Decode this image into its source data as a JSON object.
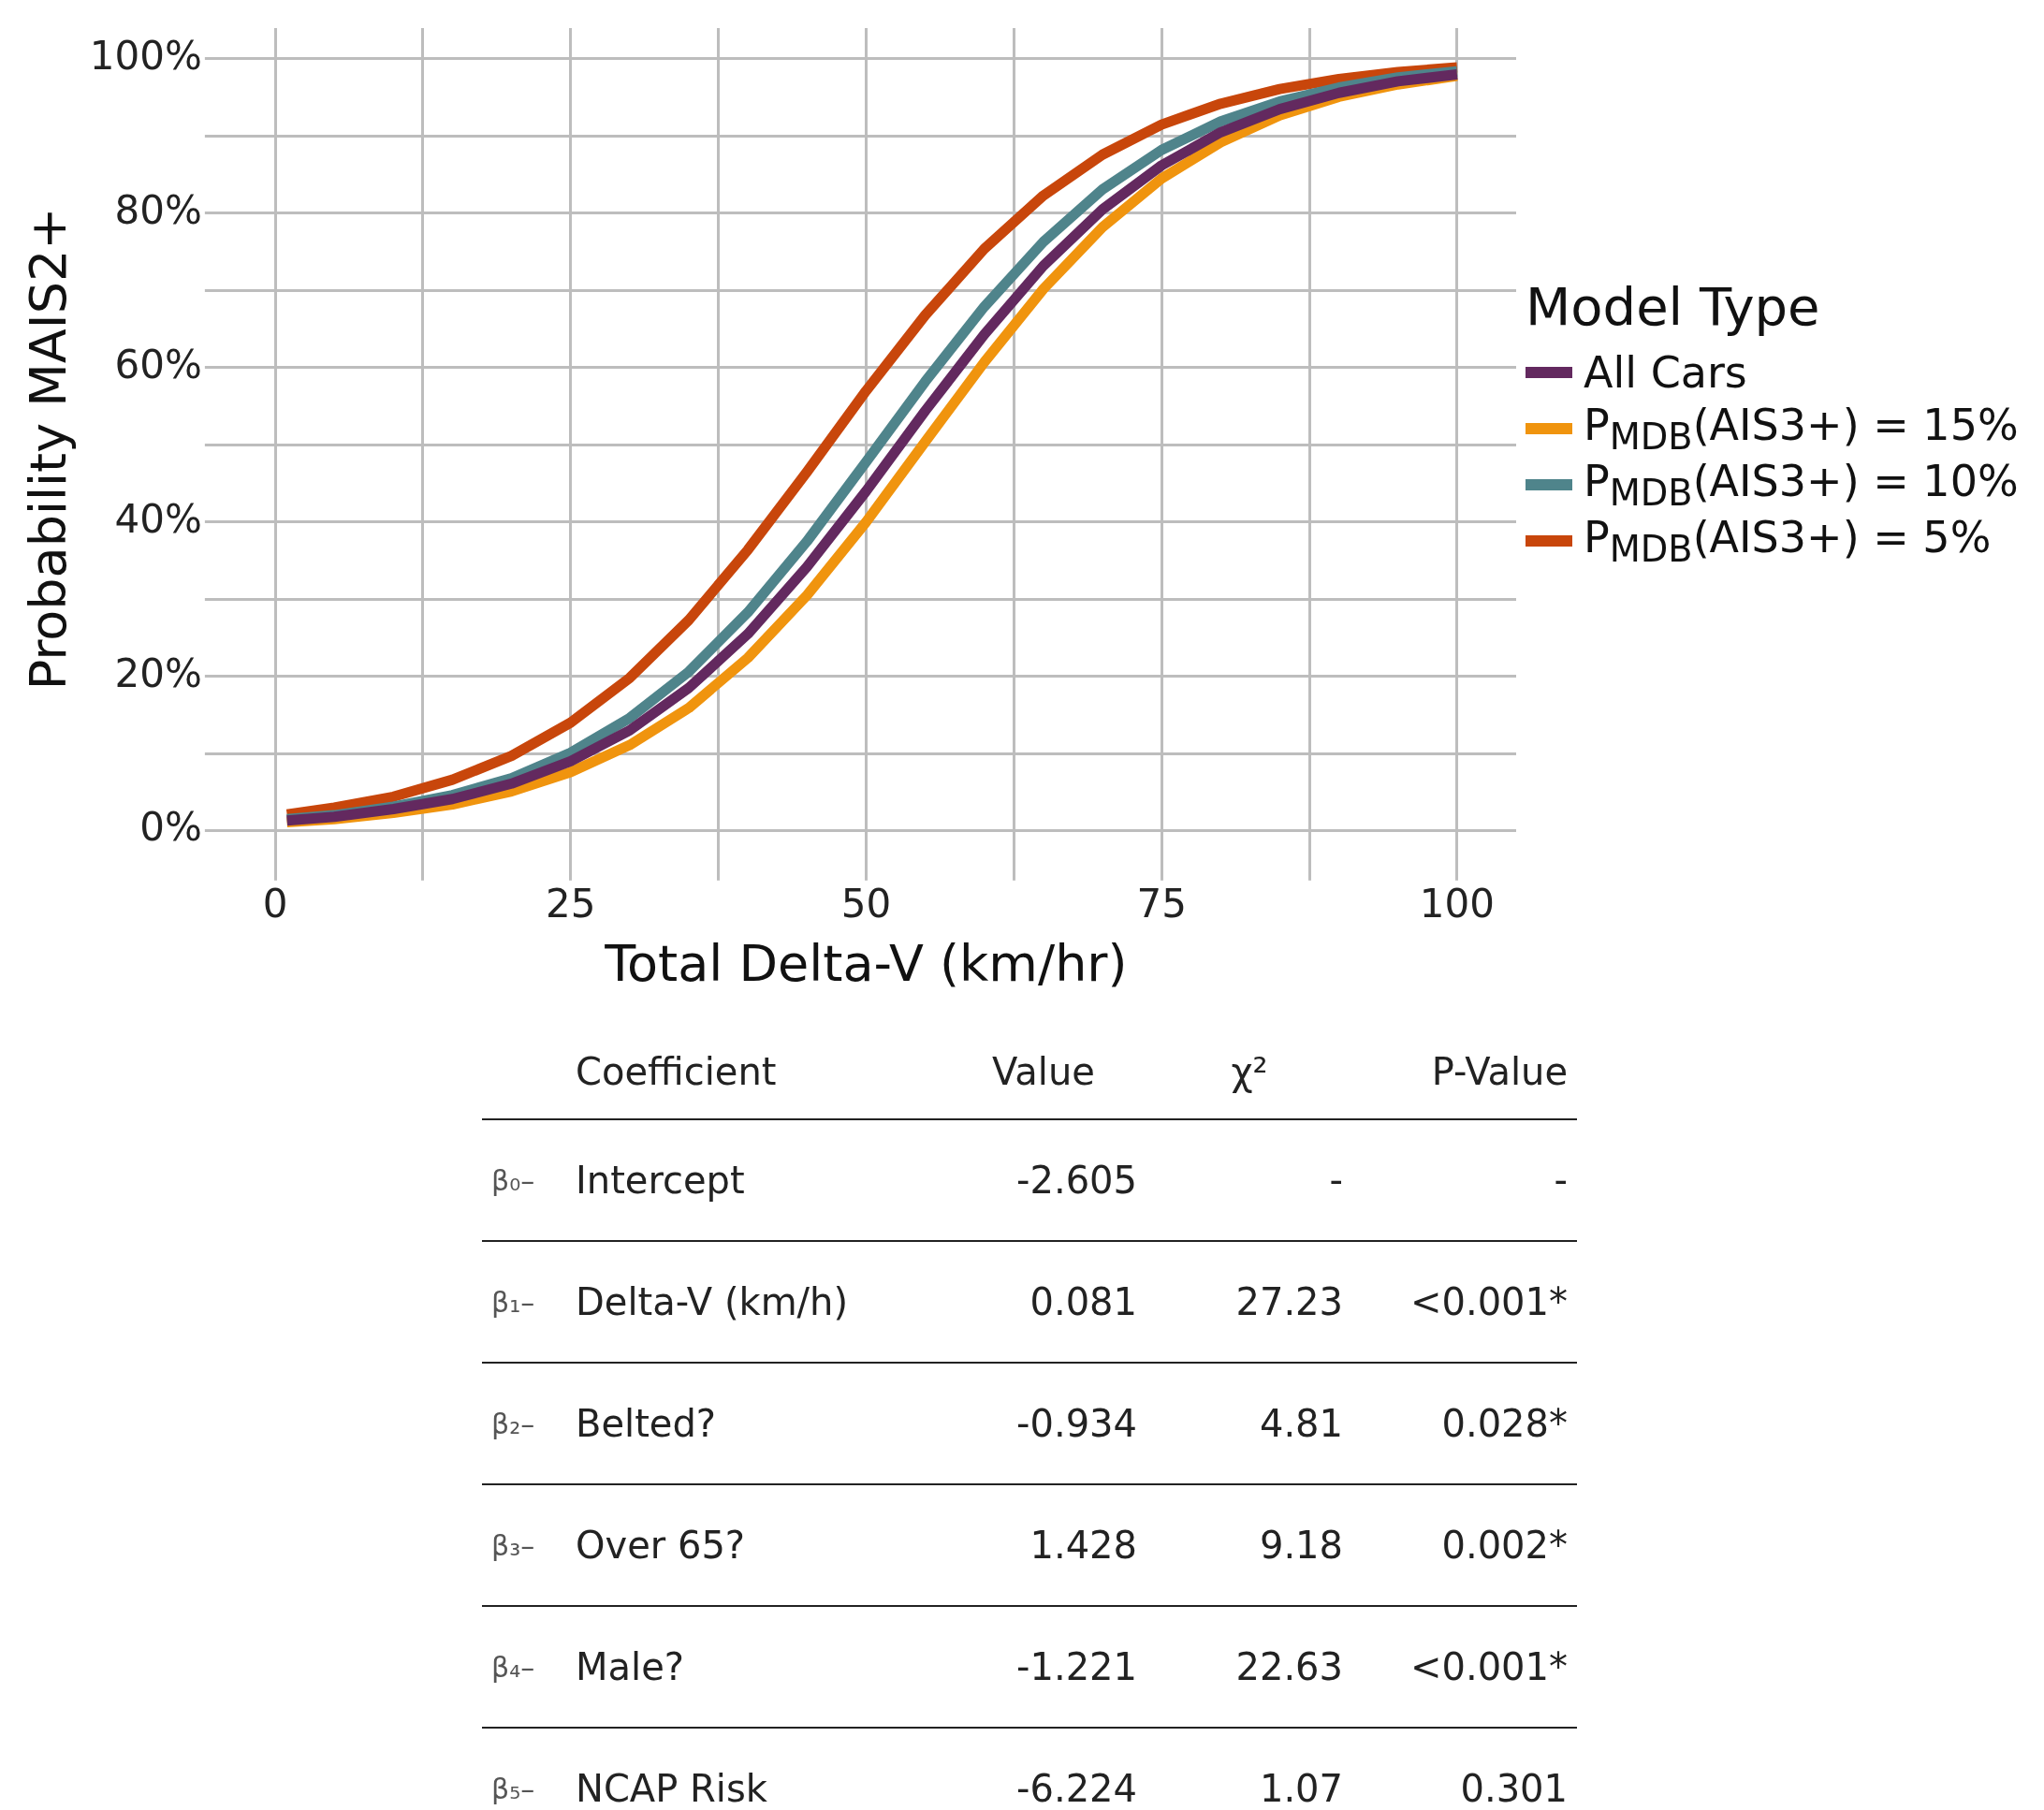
{
  "chart_data": {
    "type": "line",
    "xlabel": "Total Delta-V (km/hr)",
    "ylabel": "Probability MAIS2+",
    "legend_title": "Model Type",
    "legend": "right",
    "grid": true,
    "x": [
      1,
      5,
      10,
      15,
      20,
      25,
      30,
      35,
      40,
      45,
      50,
      55,
      60,
      65,
      70,
      75,
      80,
      85,
      90,
      95,
      100
    ],
    "series": [
      {
        "name": "All Cars",
        "color": "#63295f",
        "values": [
          1.3,
          1.8,
          2.8,
          4.1,
          6.1,
          9.0,
          13.0,
          18.5,
          25.5,
          34.2,
          44.0,
          54.4,
          64.3,
          73.2,
          80.5,
          86.2,
          90.5,
          93.5,
          95.6,
          97.1,
          98.0
        ]
      },
      {
        "name": "P$_{MDB}$(AIS3+) = 15%",
        "color": "#f0940e",
        "values": [
          1.1,
          1.5,
          2.3,
          3.4,
          5.1,
          7.6,
          11.1,
          15.9,
          22.4,
          30.5,
          40.0,
          50.4,
          60.7,
          70.2,
          78.2,
          84.5,
          89.2,
          92.7,
          95.1,
          96.7,
          97.8
        ]
      },
      {
        "name": "P$_{MDB}$(AIS3+) = 10%",
        "color": "#4f848b",
        "values": [
          1.5,
          2.0,
          3.1,
          4.6,
          6.8,
          10.1,
          14.6,
          20.6,
          28.3,
          37.5,
          47.8,
          58.2,
          67.9,
          76.3,
          83.1,
          88.2,
          91.9,
          94.5,
          96.3,
          97.6,
          98.4
        ]
      },
      {
        "name": "P$_{MDB}$(AIS3+) = 5%",
        "color": "#c8460b",
        "values": [
          2.1,
          3.0,
          4.4,
          6.6,
          9.7,
          14.0,
          19.8,
          27.3,
          36.4,
          46.5,
          57.0,
          66.8,
          75.4,
          82.3,
          87.6,
          91.5,
          94.2,
          96.1,
          97.4,
          98.3,
          98.9
        ]
      }
    ],
    "xlim": [
      -5,
      105
    ],
    "xticks": [
      0,
      {
        "value": 12.5,
        "label": null
      },
      25,
      {
        "value": 37.5,
        "label": null
      },
      50,
      {
        "value": 62.5,
        "label": null
      },
      75,
      {
        "value": 87.5,
        "label": null
      },
      100
    ],
    "ylim": [
      -5,
      104
    ],
    "yticks": [
      {
        "value": 0,
        "label": "0%"
      },
      {
        "value": 10,
        "label": null
      },
      {
        "value": 20,
        "label": "20%"
      },
      {
        "value": 30,
        "label": null
      },
      {
        "value": 40,
        "label": "40%"
      },
      {
        "value": 50,
        "label": null
      },
      {
        "value": 60,
        "label": "60%"
      },
      {
        "value": 70,
        "label": null
      },
      {
        "value": 80,
        "label": "80%"
      },
      {
        "value": 90,
        "label": null
      },
      {
        "value": 100,
        "label": "100%"
      }
    ],
    "annotations": [
      "Coefficient",
      "Value",
      "χ²",
      "P-Value",
      "β₀–",
      "Intercept",
      "-2.605",
      "-",
      "-",
      "β₁–",
      "Delta-V (km/h)",
      "0.081",
      "27.23",
      "<0.001*",
      "β₂–",
      "Belted?",
      "-0.934",
      "4.81",
      "0.028*",
      "β₃–",
      "Over 65?",
      "1.428",
      "9.18",
      "0.002*",
      "β₄–",
      "Male?",
      "-1.221",
      "22.63",
      "<0.001*",
      "β₅–",
      "NCAP Risk",
      "-6.224",
      "1.07",
      "0.301"
    ]
  }
}
